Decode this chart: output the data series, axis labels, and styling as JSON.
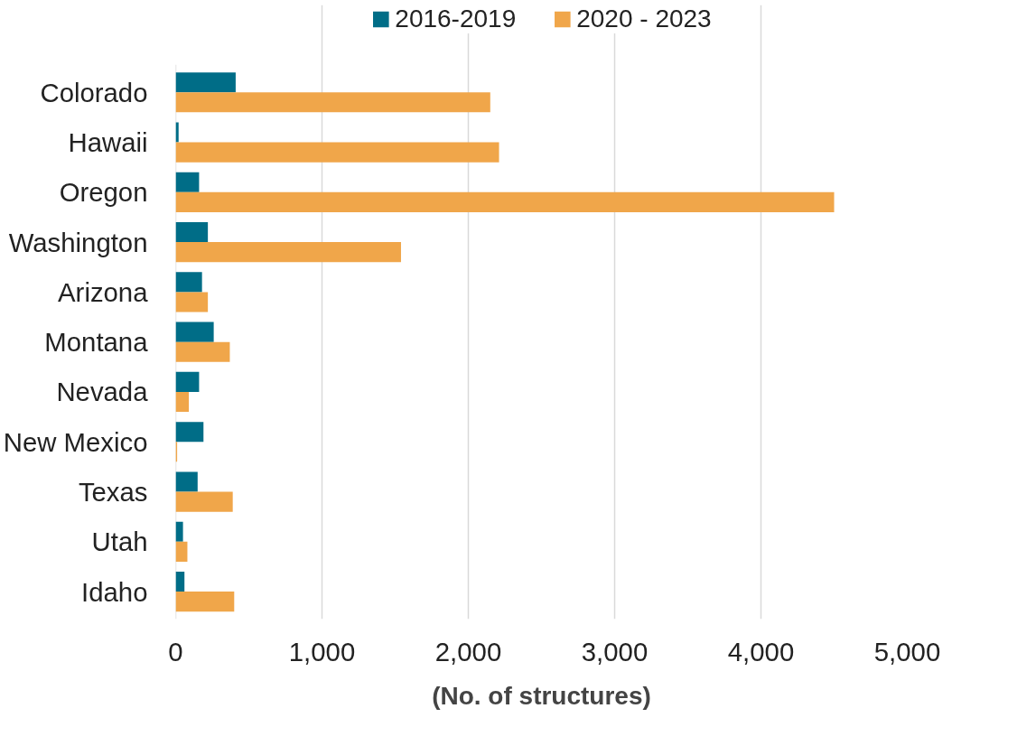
{
  "chart_data": {
    "type": "bar",
    "orientation": "horizontal",
    "xlabel": "(No. of structures)",
    "categories": [
      "Colorado",
      "Hawaii",
      "Oregon",
      "Washington",
      "Arizona",
      "Montana",
      "Nevada",
      "New Mexico",
      "Texas",
      "Utah",
      "Idaho"
    ],
    "series": [
      {
        "name": "2016-2019",
        "color": "#006d87",
        "values": [
          410,
          20,
          160,
          220,
          180,
          260,
          160,
          190,
          150,
          50,
          60
        ]
      },
      {
        "name": "2020 - 2023",
        "color": "#f0a64a",
        "values": [
          2150,
          2210,
          4500,
          1540,
          220,
          370,
          90,
          10,
          390,
          80,
          400
        ]
      }
    ],
    "xlim": [
      0,
      5000
    ],
    "xticks": [
      {
        "value": 0,
        "label": "0"
      },
      {
        "value": 1000,
        "label": "1,000"
      },
      {
        "value": 2000,
        "label": "2,000"
      },
      {
        "value": 3000,
        "label": "3,000"
      },
      {
        "value": 4000,
        "label": "4,000"
      },
      {
        "value": 5000,
        "label": "5,000"
      }
    ],
    "grid": "x",
    "legend": "top"
  }
}
